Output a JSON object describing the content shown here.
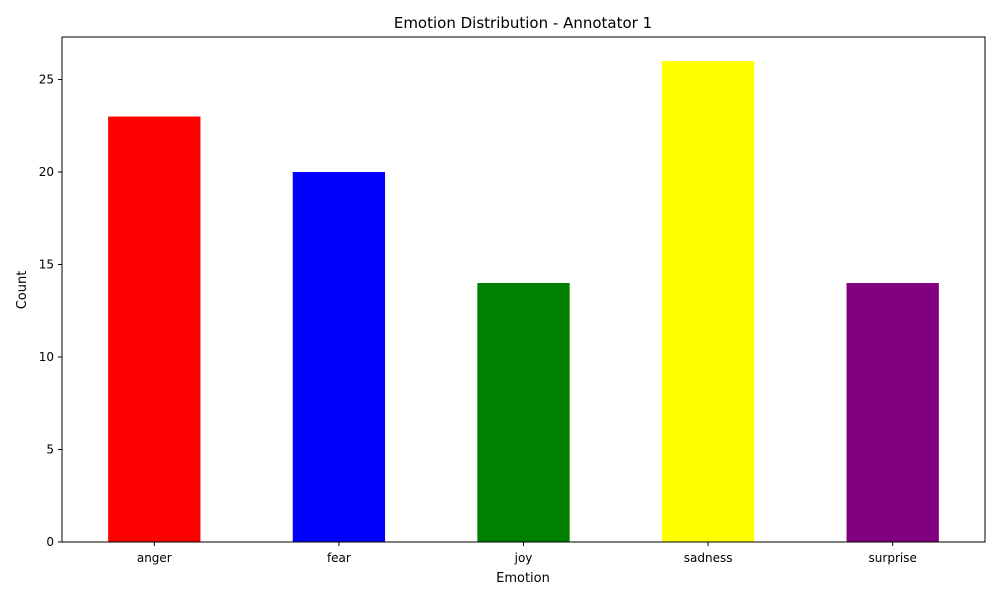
{
  "chart_data": {
    "type": "bar",
    "title": "Emotion Distribution - Annotator 1",
    "xlabel": "Emotion",
    "ylabel": "Count",
    "categories": [
      "anger",
      "fear",
      "joy",
      "sadness",
      "surprise"
    ],
    "values": [
      23,
      20,
      14,
      26,
      14
    ],
    "colors": [
      "#ff0000",
      "#0000ff",
      "#008000",
      "#ffff00",
      "#800080"
    ],
    "ylim": [
      0,
      27.3
    ],
    "yticks": [
      0,
      5,
      10,
      15,
      20,
      25
    ],
    "grid": false,
    "legend": "none"
  }
}
